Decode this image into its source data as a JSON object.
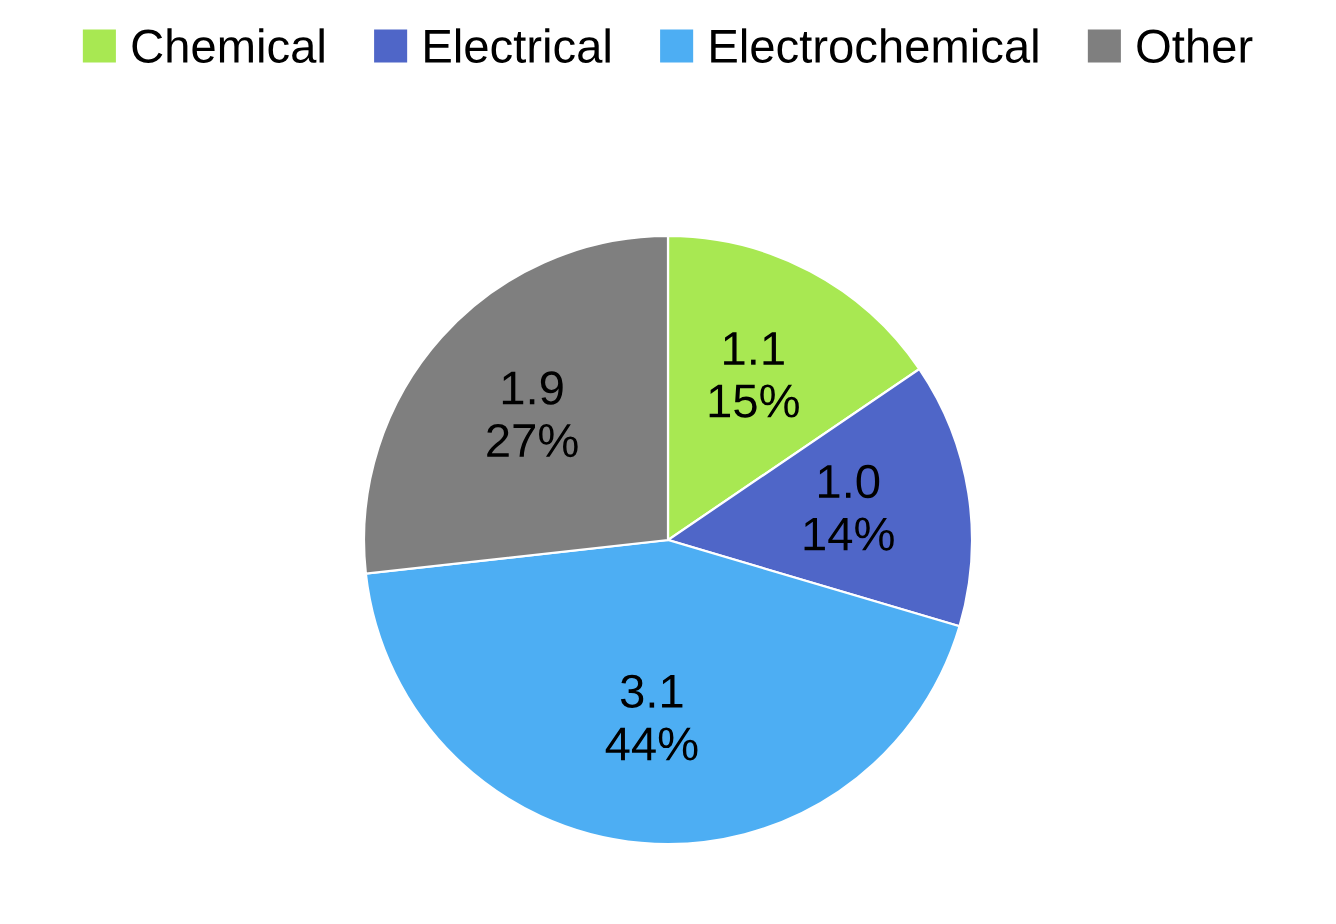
{
  "chart_data": {
    "type": "pie",
    "categories": [
      "Chemical",
      "Electrical",
      "Electrochemical",
      "Other"
    ],
    "values": [
      1.1,
      1.0,
      3.1,
      1.9
    ],
    "value_labels": [
      "1.1\n15%",
      "1.0\n14%",
      "3.1\n44%",
      "1.9\n27%"
    ],
    "colors": [
      "#a8e852",
      "#4f66c8",
      "#4daef3",
      "#7f7f7f"
    ],
    "legend": "top"
  }
}
